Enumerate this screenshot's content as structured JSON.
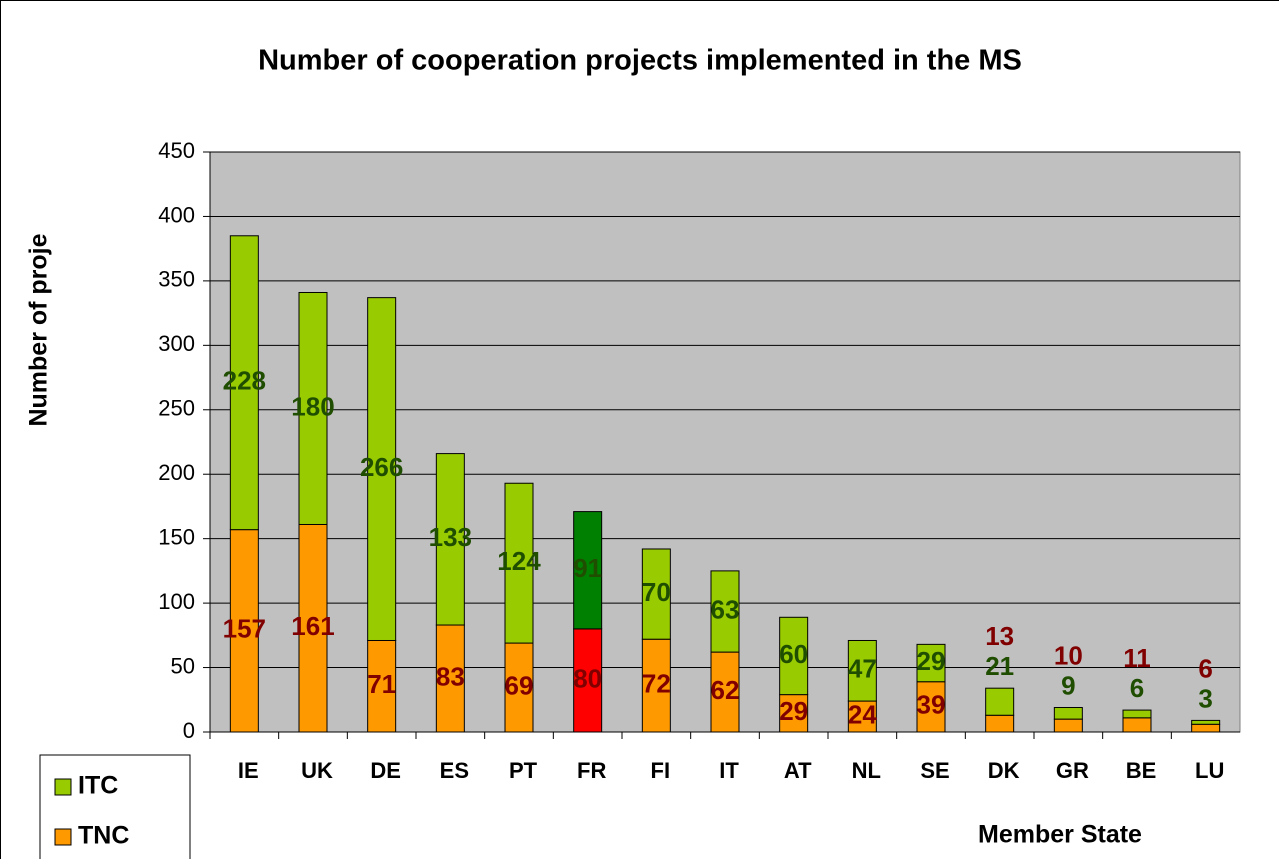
{
  "chart_data": {
    "type": "stacked_bar",
    "title": "Number of cooperation projects implemented in the MS",
    "x_label": "Member State",
    "y_label": "Number of proje",
    "categories": [
      "IE",
      "UK",
      "DE",
      "ES",
      "PT",
      "FR",
      "FI",
      "IT",
      "AT",
      "NL",
      "SE",
      "DK",
      "GR",
      "BE",
      "LU"
    ],
    "series": [
      {
        "name": "TNC",
        "color": "#ff9900",
        "label_color": "#800000",
        "colors": [
          "#ff9900",
          "#ff9900",
          "#ff9900",
          "#ff9900",
          "#ff9900",
          "#ff0000",
          "#ff9900",
          "#ff9900",
          "#ff9900",
          "#ff9900",
          "#ff9900",
          "#ff9900",
          "#ff9900",
          "#ff9900",
          "#ff9900"
        ],
        "values": [
          157,
          161,
          71,
          83,
          69,
          80,
          72,
          62,
          29,
          24,
          39,
          13,
          10,
          11,
          6
        ]
      },
      {
        "name": "ITC",
        "color": "#99cc00",
        "label_color": "#1f4e00",
        "colors": [
          "#99cc00",
          "#99cc00",
          "#99cc00",
          "#99cc00",
          "#99cc00",
          "#008000",
          "#99cc00",
          "#99cc00",
          "#99cc00",
          "#99cc00",
          "#99cc00",
          "#99cc00",
          "#99cc00",
          "#99cc00",
          "#99cc00"
        ],
        "values": [
          228,
          180,
          266,
          133,
          124,
          91,
          70,
          63,
          60,
          47,
          29,
          21,
          9,
          6,
          3
        ]
      }
    ],
    "ylim": [
      0,
      450
    ],
    "yticks": [
      0,
      50,
      100,
      150,
      200,
      250,
      300,
      350,
      400,
      450
    ],
    "grid": true,
    "legend": "bottom-left"
  }
}
